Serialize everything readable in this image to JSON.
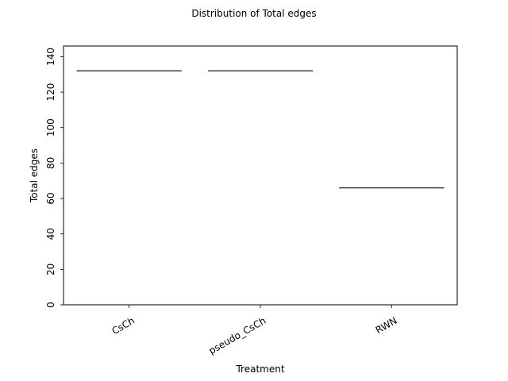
{
  "chart_data": {
    "type": "box",
    "title": "Distribution of Total edges",
    "xlabel": "Treatment",
    "ylabel": "Total edges",
    "categories": [
      "CsCh",
      "pseudo_CsCh",
      "RWN"
    ],
    "values": [
      132,
      132,
      66
    ],
    "ylim": [
      0,
      146
    ],
    "yticks": [
      0,
      20,
      40,
      60,
      80,
      100,
      120,
      140
    ],
    "ytick_labels": [
      "0",
      "20",
      "40",
      "60",
      "80",
      "100",
      "120",
      "140"
    ],
    "grid": false,
    "legend": "none"
  },
  "colors": {
    "median_line": "#3f3f3f",
    "axes": "#000000",
    "background": "#ffffff"
  }
}
